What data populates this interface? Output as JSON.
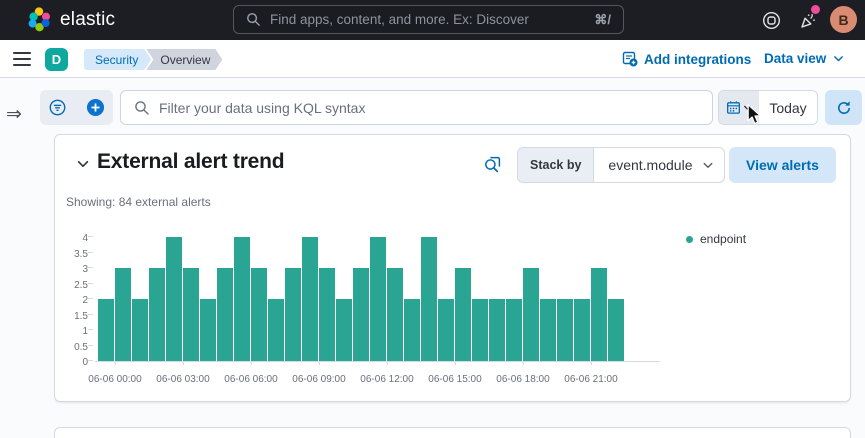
{
  "theme": {
    "header_bg": "#1d1e23",
    "accent_blue": "#006bb4",
    "bar_teal": "#2ba593",
    "notification_pink": "#f04e98",
    "space_avatar_teal": "#0fa89e",
    "user_avatar_salmon": "#da8b74",
    "border_gray": "#d3dae6"
  },
  "header": {
    "brand": "elastic",
    "search": {
      "placeholder": "Find apps, content, and more. Ex: Discover",
      "shortcut": "⌘/"
    },
    "user_avatar_initial": "B"
  },
  "nav": {
    "space_initial": "D",
    "breadcrumbs": [
      {
        "label": "Security"
      },
      {
        "label": "Overview"
      }
    ],
    "add_integrations_label": "Add integrations",
    "data_view_label": "Data view"
  },
  "filter_bar": {
    "kql_placeholder": "Filter your data using KQL syntax",
    "date_label": "Today"
  },
  "panel": {
    "title": "External alert trend",
    "subtitle": "Showing: 84 external alerts",
    "stack_by_label": "Stack by",
    "stack_by_value": "event.module",
    "view_alerts_label": "View alerts"
  },
  "chart_data": {
    "type": "bar",
    "title": "External alert trend",
    "total_alerts": 84,
    "bucket_minutes": 45,
    "categories_note": "hourly histogram buckets for 06-06, 45-minute interval, 31 buckets",
    "series": [
      {
        "name": "endpoint",
        "color": "#2ba593",
        "values": [
          2,
          3,
          2,
          3,
          4,
          3,
          2,
          3,
          4,
          3,
          2,
          3,
          4,
          3,
          2,
          3,
          4,
          3,
          2,
          4,
          2,
          3,
          2,
          2,
          2,
          3,
          2,
          2,
          2,
          3,
          2
        ]
      }
    ],
    "x_tick_labels": [
      "06-06 00:00",
      "06-06 03:00",
      "06-06 06:00",
      "06-06 09:00",
      "06-06 12:00",
      "06-06 15:00",
      "06-06 18:00",
      "06-06 21:00"
    ],
    "first_tick_after_bar": 1,
    "bars_per_tick": 4,
    "y_ticks": [
      0,
      0.5,
      1,
      1.5,
      2,
      2.5,
      3,
      3.5,
      4
    ],
    "ylim": [
      0,
      4
    ],
    "xlabel": "",
    "ylabel": "",
    "grid": false,
    "legend": {
      "position": "right",
      "items": [
        "endpoint"
      ]
    }
  },
  "icons": [
    "elastic-logo",
    "search-icon",
    "help-icon",
    "newsfeed-icon",
    "menu-icon",
    "add-integrations-icon",
    "chevron-down-icon",
    "expand-sidebar-icon",
    "filter-icon",
    "add-filter-icon",
    "calendar-icon",
    "refresh-icon",
    "inspect-icon",
    "legend-dot",
    "mouse-cursor"
  ]
}
